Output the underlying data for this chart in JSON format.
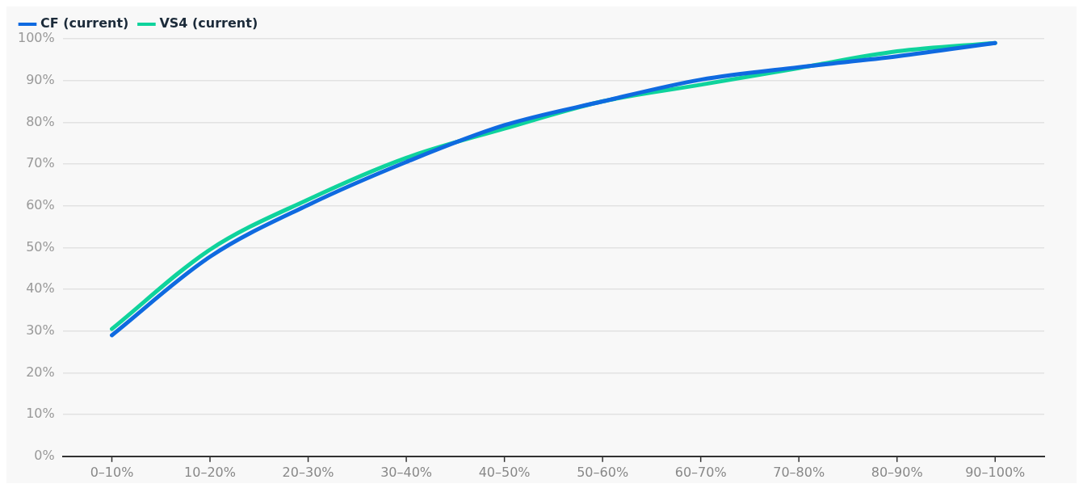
{
  "chart_data": {
    "type": "line",
    "categories": [
      "0–10%",
      "10–20%",
      "20–30%",
      "30–40%",
      "40–50%",
      "50–60%",
      "60–70%",
      "70–80%",
      "80–90%",
      "90–100%"
    ],
    "series": [
      {
        "name": "CF (current)",
        "color": "#0f6ae0",
        "values": [
          29,
          47.8,
          60.2,
          70.5,
          79.3,
          85,
          90.2,
          93.2,
          95.8,
          99
        ]
      },
      {
        "name": "VS4 (current)",
        "color": "#0fd39c",
        "values": [
          30.5,
          49.5,
          61.5,
          71.5,
          78.5,
          85,
          89,
          93,
          97,
          99
        ]
      }
    ],
    "ylim": [
      0,
      100
    ],
    "yticks": [
      {
        "value": 0,
        "label": "0%"
      },
      {
        "value": 10,
        "label": "10%"
      },
      {
        "value": 20,
        "label": "20%"
      },
      {
        "value": 30,
        "label": "30%"
      },
      {
        "value": 40,
        "label": "40%"
      },
      {
        "value": 50,
        "label": "50%"
      },
      {
        "value": 60,
        "label": "60%"
      },
      {
        "value": 70,
        "label": "70%"
      },
      {
        "value": 80,
        "label": "80%"
      },
      {
        "value": 90,
        "label": "90%"
      },
      {
        "value": 100,
        "label": "100%"
      }
    ],
    "grid": "y",
    "legend": "top left",
    "marker": "none",
    "line_style": "solid"
  }
}
